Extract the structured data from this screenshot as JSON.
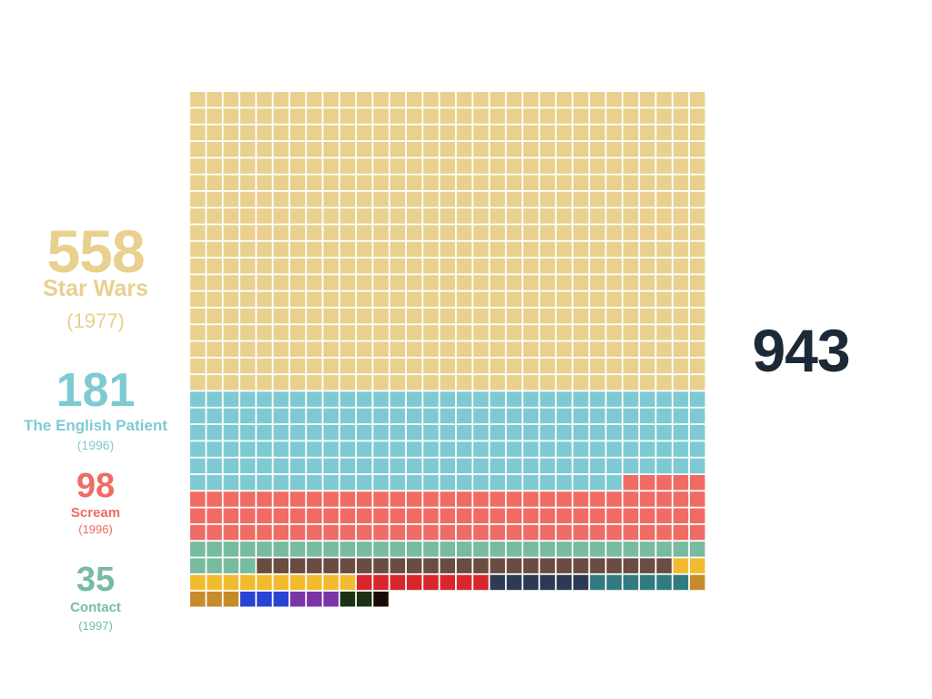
{
  "chart_data": {
    "type": "waffle",
    "columns": 31,
    "total": "943",
    "total_color": "#1b2a36",
    "series": [
      {
        "name": "Star Wars",
        "year": "(1977)",
        "value": 558,
        "value_label": "558",
        "color": "#e9d08f",
        "labeled": true
      },
      {
        "name": "The English Patient",
        "year": "(1996)",
        "value": 181,
        "value_label": "181",
        "color": "#7ecad3",
        "labeled": true
      },
      {
        "name": "Scream",
        "year": "(1996)",
        "value": 98,
        "value_label": "98",
        "color": "#ef6b63",
        "labeled": true
      },
      {
        "name": "Contact",
        "year": "(1997)",
        "value": 35,
        "value_label": "35",
        "color": "#77bba1",
        "labeled": true
      },
      {
        "value": 25,
        "color": "#6b4c41",
        "labeled": false
      },
      {
        "value": 12,
        "color": "#f2bb2f",
        "labeled": false
      },
      {
        "value": 8,
        "color": "#d9262e",
        "labeled": false
      },
      {
        "value": 6,
        "color": "#2e3a55",
        "labeled": false
      },
      {
        "value": 6,
        "color": "#317b7e",
        "labeled": false
      },
      {
        "value": 4,
        "color": "#c68b2a",
        "labeled": false
      },
      {
        "value": 3,
        "color": "#2944d4",
        "labeled": false
      },
      {
        "value": 3,
        "color": "#7a35a6",
        "labeled": false
      },
      {
        "value": 2,
        "color": "#1c3214",
        "labeled": false
      },
      {
        "value": 1,
        "color": "#1a0a05",
        "labeled": false
      },
      {
        "value": 1,
        "color": "#ffffff",
        "labeled": false
      }
    ]
  }
}
